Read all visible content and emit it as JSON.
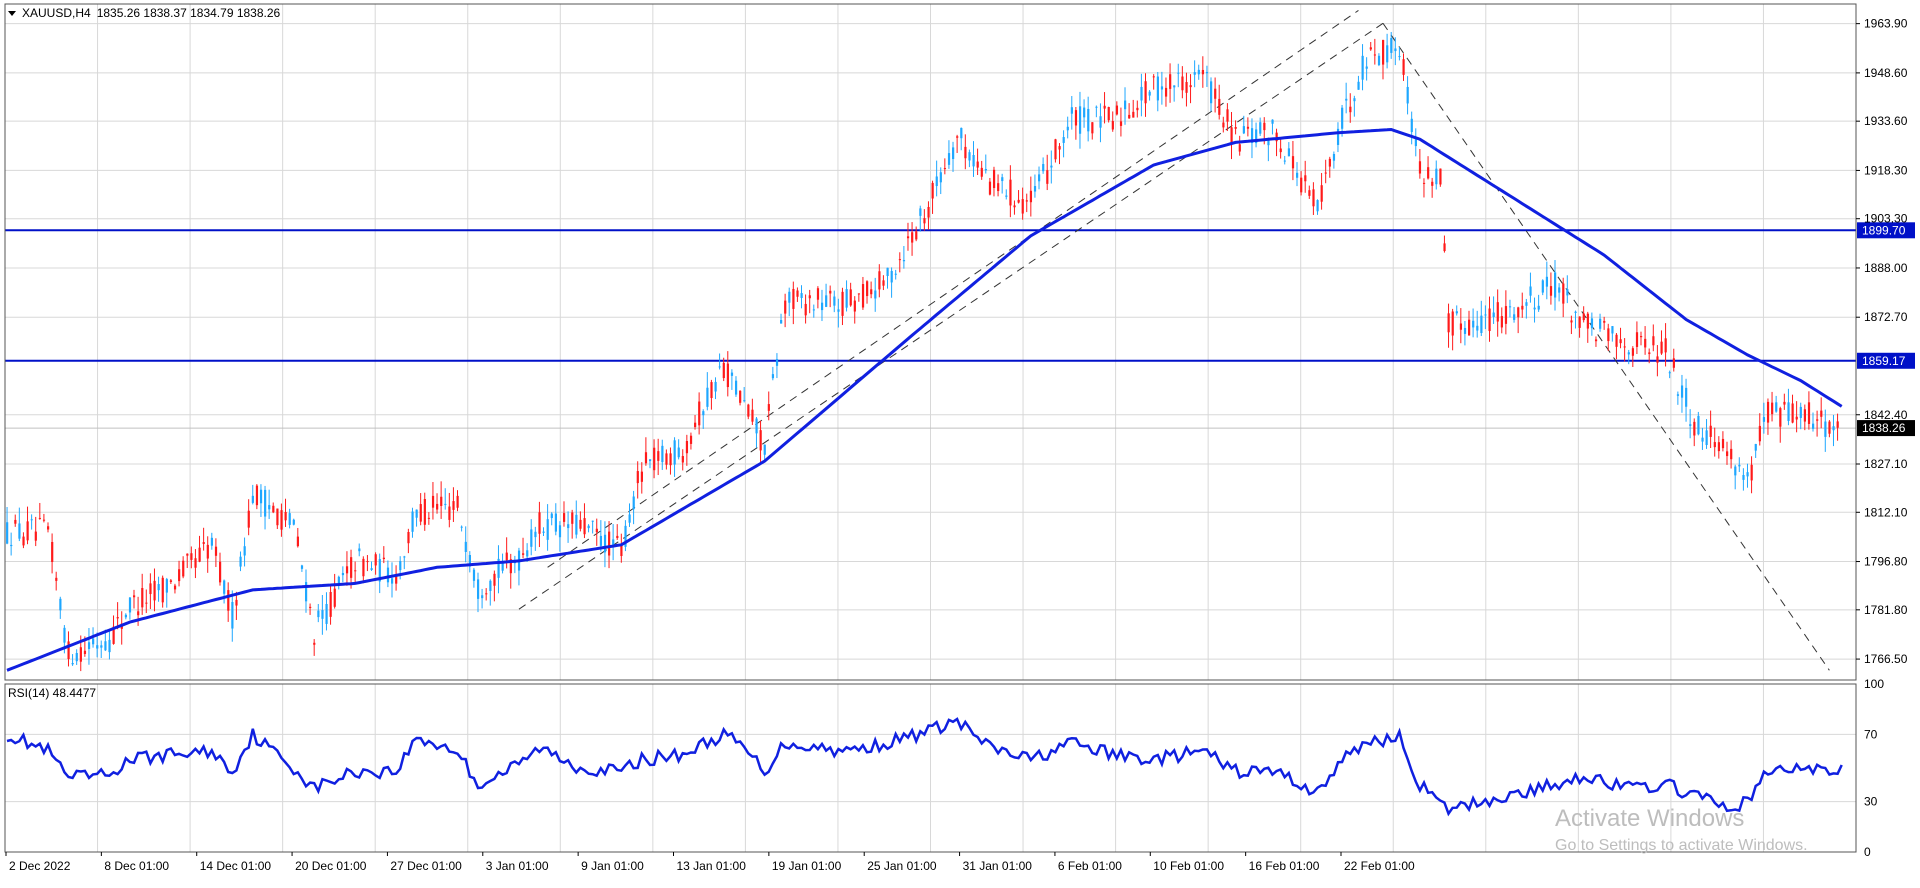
{
  "header": {
    "symbol": "XAUUSD,H4",
    "ohlc": "1835.26 1838.37 1834.79 1838.26"
  },
  "indicator": {
    "label": "RSI(14) 48.4477"
  },
  "watermark": {
    "line1": "Activate Windows",
    "line2": "Go to Settings to activate Windows."
  },
  "colors": {
    "bull": "#1ea7ff",
    "bear": "#ff1a1a",
    "ma": "#1020e0",
    "level": "#0010c8",
    "rsi": "#1020e0",
    "grid": "#d8d8d8"
  },
  "chart_data": {
    "type": "candlestick",
    "price_ticks": [
      1963.9,
      1948.6,
      1933.6,
      1918.3,
      1903.3,
      1888.0,
      1872.7,
      1842.4,
      1827.1,
      1812.1,
      1796.8,
      1781.8,
      1766.5
    ],
    "price_range": [
      1760.0,
      1970.0
    ],
    "x_ticks": [
      "2 Dec 2022",
      "8 Dec 01:00",
      "14 Dec 01:00",
      "20 Dec 01:00",
      "27 Dec 01:00",
      "3 Jan 01:00",
      "9 Jan 01:00",
      "13 Jan 01:00",
      "19 Jan 01:00",
      "25 Jan 01:00",
      "31 Jan 01:00",
      "6 Feb 01:00",
      "10 Feb 01:00",
      "16 Feb 01:00",
      "22 Feb 01:00"
    ],
    "levels": [
      1899.7,
      1859.17
    ],
    "current_price": 1838.26,
    "ma_anchors": [
      [
        0,
        1763
      ],
      [
        30,
        1778
      ],
      [
        60,
        1788
      ],
      [
        85,
        1790
      ],
      [
        105,
        1795
      ],
      [
        125,
        1797
      ],
      [
        150,
        1802
      ],
      [
        185,
        1828
      ],
      [
        220,
        1866
      ],
      [
        250,
        1898
      ],
      [
        280,
        1920
      ],
      [
        300,
        1927
      ],
      [
        325,
        1930
      ],
      [
        338,
        1931
      ],
      [
        345,
        1928
      ],
      [
        365,
        1912
      ],
      [
        390,
        1892
      ],
      [
        410,
        1872
      ],
      [
        425,
        1861
      ],
      [
        438,
        1853
      ],
      [
        448,
        1845
      ]
    ],
    "price_anchors": [
      [
        0,
        1806
      ],
      [
        10,
        1806
      ],
      [
        15,
        1768
      ],
      [
        25,
        1773
      ],
      [
        30,
        1783
      ],
      [
        40,
        1790
      ],
      [
        50,
        1802
      ],
      [
        55,
        1780
      ],
      [
        60,
        1818
      ],
      [
        70,
        1808
      ],
      [
        75,
        1775
      ],
      [
        85,
        1797
      ],
      [
        95,
        1793
      ],
      [
        100,
        1812
      ],
      [
        110,
        1814
      ],
      [
        115,
        1789
      ],
      [
        125,
        1798
      ],
      [
        130,
        1808
      ],
      [
        140,
        1808
      ],
      [
        150,
        1800
      ],
      [
        155,
        1826
      ],
      [
        165,
        1832
      ],
      [
        175,
        1858
      ],
      [
        180,
        1845
      ],
      [
        185,
        1833
      ],
      [
        190,
        1878
      ],
      [
        205,
        1877
      ],
      [
        215,
        1884
      ],
      [
        225,
        1908
      ],
      [
        232,
        1929
      ],
      [
        240,
        1915
      ],
      [
        250,
        1908
      ],
      [
        260,
        1934
      ],
      [
        270,
        1934
      ],
      [
        280,
        1944
      ],
      [
        292,
        1948
      ],
      [
        300,
        1928
      ],
      [
        310,
        1930
      ],
      [
        320,
        1906
      ],
      [
        325,
        1930
      ],
      [
        332,
        1954
      ],
      [
        340,
        1957
      ],
      [
        345,
        1918
      ],
      [
        350,
        1916
      ],
      [
        352,
        1870
      ],
      [
        360,
        1872
      ],
      [
        370,
        1876
      ],
      [
        378,
        1883
      ],
      [
        385,
        1870
      ],
      [
        395,
        1865
      ],
      [
        405,
        1862
      ],
      [
        412,
        1840
      ],
      [
        420,
        1832
      ],
      [
        425,
        1822
      ],
      [
        430,
        1843
      ],
      [
        438,
        1843
      ],
      [
        448,
        1838
      ]
    ],
    "rsi": {
      "range": [
        0,
        100
      ],
      "ticks": [
        100,
        70,
        30,
        0
      ],
      "value": 48.4477,
      "anchors": [
        [
          0,
          70
        ],
        [
          10,
          60
        ],
        [
          15,
          44
        ],
        [
          25,
          46
        ],
        [
          30,
          55
        ],
        [
          40,
          58
        ],
        [
          50,
          60
        ],
        [
          55,
          48
        ],
        [
          60,
          70
        ],
        [
          70,
          50
        ],
        [
          75,
          38
        ],
        [
          85,
          48
        ],
        [
          95,
          48
        ],
        [
          100,
          68
        ],
        [
          110,
          60
        ],
        [
          115,
          40
        ],
        [
          125,
          52
        ],
        [
          130,
          62
        ],
        [
          140,
          50
        ],
        [
          150,
          48
        ],
        [
          155,
          55
        ],
        [
          165,
          58
        ],
        [
          175,
          70
        ],
        [
          180,
          62
        ],
        [
          185,
          48
        ],
        [
          190,
          65
        ],
        [
          205,
          60
        ],
        [
          215,
          65
        ],
        [
          225,
          72
        ],
        [
          232,
          78
        ],
        [
          240,
          62
        ],
        [
          250,
          55
        ],
        [
          260,
          65
        ],
        [
          270,
          58
        ],
        [
          280,
          55
        ],
        [
          292,
          60
        ],
        [
          300,
          48
        ],
        [
          310,
          48
        ],
        [
          320,
          35
        ],
        [
          325,
          52
        ],
        [
          332,
          66
        ],
        [
          340,
          68
        ],
        [
          345,
          40
        ],
        [
          350,
          28
        ],
        [
          352,
          25
        ],
        [
          360,
          30
        ],
        [
          370,
          35
        ],
        [
          378,
          40
        ],
        [
          385,
          46
        ],
        [
          395,
          38
        ],
        [
          405,
          40
        ],
        [
          412,
          34
        ],
        [
          420,
          26
        ],
        [
          425,
          30
        ],
        [
          430,
          48
        ],
        [
          438,
          50
        ],
        [
          448,
          48
        ]
      ]
    }
  }
}
